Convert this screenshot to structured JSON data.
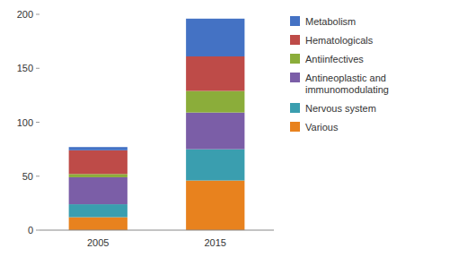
{
  "chart_data": {
    "type": "bar",
    "stacked": true,
    "categories": [
      "2005",
      "2015"
    ],
    "series": [
      {
        "name": "Various",
        "color": "#E8821E",
        "values": [
          12,
          46
        ]
      },
      {
        "name": "Nervous system",
        "color": "#3A9EAF",
        "values": [
          12,
          29
        ]
      },
      {
        "name": "Antineoplastic and\nimmunomodulating",
        "color": "#7B5EA7",
        "values": [
          25,
          34
        ]
      },
      {
        "name": "Antiinfectives",
        "color": "#8BAD3A",
        "values": [
          3,
          20
        ]
      },
      {
        "name": "Hematologicals",
        "color": "#BE4B48",
        "values": [
          22,
          32
        ]
      },
      {
        "name": "Metabolism",
        "color": "#4472C4",
        "values": [
          3,
          35
        ]
      }
    ],
    "ylim": [
      0,
      200
    ],
    "yticks": [
      0,
      50,
      100,
      150,
      200
    ],
    "grid": false,
    "legend": "right"
  }
}
